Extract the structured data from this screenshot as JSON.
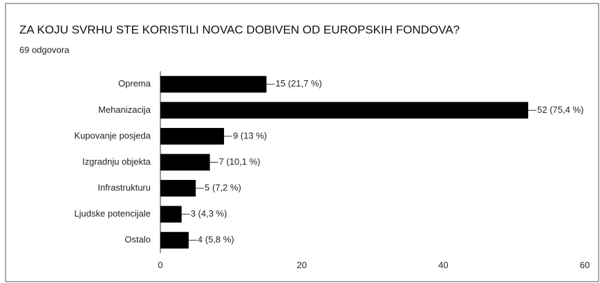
{
  "chart_data": {
    "type": "hbar",
    "title": "ZA KOJU SVRHU STE KORISTILI NOVAC DOBIVEN OD EUROPSKIH FONDOVA?",
    "subtitle": "69 odgovora",
    "categories": [
      "Oprema",
      "Mehanizacija",
      "Kupovanje posjeda",
      "Izgradnju objekta",
      "Infrastrukturu",
      "Ljudske potencijale",
      "Ostalo"
    ],
    "values": [
      15,
      52,
      9,
      7,
      5,
      3,
      4
    ],
    "value_labels": [
      "15 (21,7 %)",
      "52 (75,4 %)",
      "9 (13 %)",
      "7 (10,1 %)",
      "5 (7,2 %)",
      "3 (4,3 %)",
      "4 (5,8 %)"
    ],
    "color": "#000000",
    "xlim": [
      0,
      60
    ],
    "xticks": [
      0,
      20,
      40,
      60
    ],
    "grid": false
  }
}
